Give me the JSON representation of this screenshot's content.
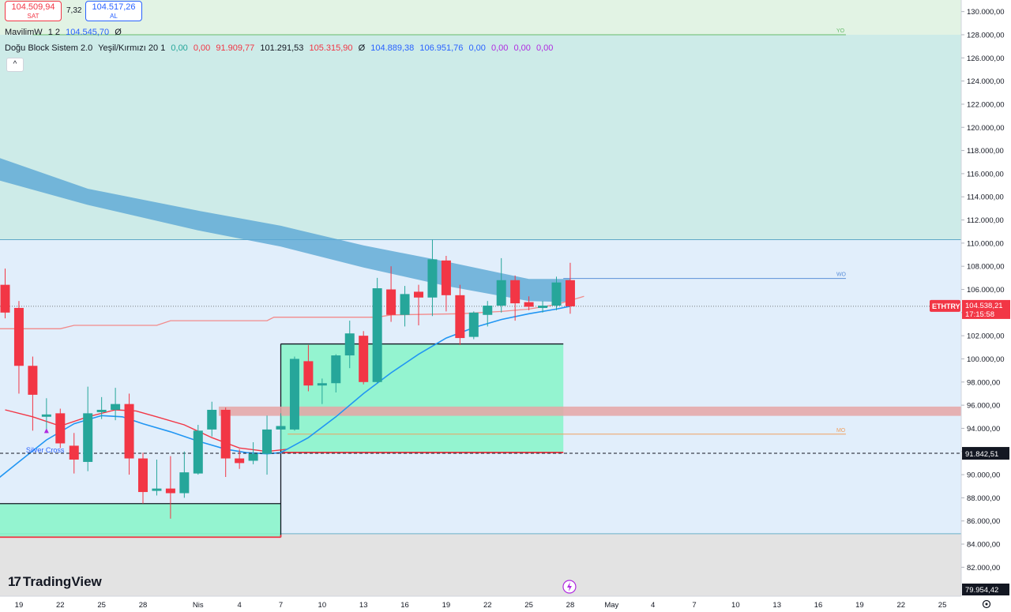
{
  "header": {
    "sell_price": "104.509,94",
    "sell_label": "SAT",
    "spread": "7,32",
    "buy_price": "104.517,26",
    "buy_label": "AL",
    "collapse_icon": "chevron-up-icon",
    "collapse_glyph": "^"
  },
  "legend": {
    "line1": {
      "name": "MavilimW",
      "params": "1 2",
      "value": "104.545,70",
      "symbol": "Ø"
    },
    "line2": {
      "name": "Doğu Block Sistem 2.0",
      "params": "Yeşil/Kırmızı 20 1",
      "values": [
        "0,00",
        "0,00",
        "91.909,77",
        "101.291,53",
        "105.315,90",
        "Ø",
        "104.889,38",
        "106.951,76",
        "0,00",
        "0,00",
        "0,00",
        "0,00"
      ]
    }
  },
  "logo": {
    "text": "TradingView",
    "mark": "17"
  },
  "colors": {
    "up": "#26a69a",
    "down": "#f23645",
    "mavilim": "#2196f3",
    "redline": "#f23645",
    "band": "#5ba8d4",
    "green_box": "#86f5c8",
    "pink_zone": "#e5a5a5"
  },
  "chart_data": {
    "type": "candlestick",
    "symbol": "ETHTRY",
    "last_price": "104.538,21",
    "countdown": "17:15:58",
    "bottom_price_label": "79.954,42",
    "dashed_level_label": "91.842,51",
    "dashed_level": 91842.51,
    "ylim": [
      79500,
      131000
    ],
    "y_ticks": [
      "130.000,00",
      "128.000,00",
      "126.000,00",
      "124.000,00",
      "122.000,00",
      "120.000,00",
      "118.000,00",
      "116.000,00",
      "114.000,00",
      "112.000,00",
      "110.000,00",
      "108.000,00",
      "106.000,00",
      "104.000,00",
      "102.000,00",
      "100.000,00",
      "98.000,00",
      "96.000,00",
      "94.000,00",
      "92.000,00",
      "90.000,00",
      "88.000,00",
      "86.000,00",
      "84.000,00",
      "82.000,00"
    ],
    "y_tick_values": [
      130000,
      128000,
      126000,
      124000,
      122000,
      120000,
      118000,
      116000,
      114000,
      112000,
      110000,
      108000,
      106000,
      104000,
      102000,
      100000,
      98000,
      96000,
      94000,
      92000,
      90000,
      88000,
      86000,
      84000,
      82000
    ],
    "x_labels": [
      {
        "i": 1,
        "label": "19"
      },
      {
        "i": 4,
        "label": "22"
      },
      {
        "i": 7,
        "label": "25"
      },
      {
        "i": 10,
        "label": "28"
      },
      {
        "i": 14,
        "label": "Nis"
      },
      {
        "i": 17,
        "label": "4"
      },
      {
        "i": 20,
        "label": "7"
      },
      {
        "i": 23,
        "label": "10"
      },
      {
        "i": 26,
        "label": "13"
      },
      {
        "i": 29,
        "label": "16"
      },
      {
        "i": 32,
        "label": "19"
      },
      {
        "i": 35,
        "label": "22"
      },
      {
        "i": 38,
        "label": "25"
      },
      {
        "i": 41,
        "label": "28"
      },
      {
        "i": 44,
        "label": "May"
      },
      {
        "i": 47,
        "label": "4"
      },
      {
        "i": 50,
        "label": "7"
      },
      {
        "i": 53,
        "label": "10"
      },
      {
        "i": 56,
        "label": "13"
      },
      {
        "i": 59,
        "label": "16"
      },
      {
        "i": 62,
        "label": "19"
      },
      {
        "i": 65,
        "label": "22"
      },
      {
        "i": 68,
        "label": "25"
      }
    ],
    "candles": [
      {
        "o": 106400,
        "h": 107800,
        "l": 103500,
        "c": 104000
      },
      {
        "o": 104400,
        "h": 105000,
        "l": 97000,
        "c": 99400
      },
      {
        "o": 99400,
        "h": 100200,
        "l": 93800,
        "c": 96900
      },
      {
        "o": 95000,
        "h": 96600,
        "l": 93600,
        "c": 95200
      },
      {
        "o": 95300,
        "h": 95700,
        "l": 92300,
        "c": 92700
      },
      {
        "o": 92500,
        "h": 93600,
        "l": 90100,
        "c": 91300
      },
      {
        "o": 91100,
        "h": 97600,
        "l": 90300,
        "c": 95300
      },
      {
        "o": 95400,
        "h": 96700,
        "l": 94800,
        "c": 95600
      },
      {
        "o": 95600,
        "h": 97500,
        "l": 94700,
        "c": 96100
      },
      {
        "o": 96100,
        "h": 97000,
        "l": 90000,
        "c": 91400
      },
      {
        "o": 91400,
        "h": 91900,
        "l": 87500,
        "c": 88500
      },
      {
        "o": 88600,
        "h": 91300,
        "l": 88200,
        "c": 88800
      },
      {
        "o": 88800,
        "h": 91600,
        "l": 86200,
        "c": 88400
      },
      {
        "o": 88400,
        "h": 92000,
        "l": 88000,
        "c": 90200
      },
      {
        "o": 90100,
        "h": 94300,
        "l": 90000,
        "c": 93800
      },
      {
        "o": 93900,
        "h": 96300,
        "l": 93300,
        "c": 95600
      },
      {
        "o": 95600,
        "h": 95800,
        "l": 89800,
        "c": 91400
      },
      {
        "o": 91400,
        "h": 92200,
        "l": 90500,
        "c": 91000
      },
      {
        "o": 91200,
        "h": 92800,
        "l": 90900,
        "c": 91800
      },
      {
        "o": 91800,
        "h": 95100,
        "l": 90000,
        "c": 93900
      },
      {
        "o": 93900,
        "h": 95300,
        "l": 92200,
        "c": 94200
      },
      {
        "o": 93900,
        "h": 100200,
        "l": 93800,
        "c": 100000
      },
      {
        "o": 99800,
        "h": 101200,
        "l": 97200,
        "c": 97700
      },
      {
        "o": 97700,
        "h": 98300,
        "l": 96100,
        "c": 97900
      },
      {
        "o": 97900,
        "h": 100400,
        "l": 97100,
        "c": 100300
      },
      {
        "o": 100300,
        "h": 103300,
        "l": 99200,
        "c": 102200
      },
      {
        "o": 102000,
        "h": 102400,
        "l": 97800,
        "c": 98000
      },
      {
        "o": 98000,
        "h": 107000,
        "l": 97900,
        "c": 106100
      },
      {
        "o": 106000,
        "h": 108000,
        "l": 103200,
        "c": 103800
      },
      {
        "o": 103800,
        "h": 106300,
        "l": 102800,
        "c": 105600
      },
      {
        "o": 105800,
        "h": 106400,
        "l": 102900,
        "c": 105300
      },
      {
        "o": 105300,
        "h": 110300,
        "l": 103700,
        "c": 108600
      },
      {
        "o": 108500,
        "h": 108900,
        "l": 104100,
        "c": 105500
      },
      {
        "o": 105500,
        "h": 106400,
        "l": 101200,
        "c": 101800
      },
      {
        "o": 101900,
        "h": 104100,
        "l": 101700,
        "c": 104000
      },
      {
        "o": 103800,
        "h": 105000,
        "l": 102800,
        "c": 104600
      },
      {
        "o": 104600,
        "h": 108700,
        "l": 104000,
        "c": 106800
      },
      {
        "o": 106800,
        "h": 107200,
        "l": 103300,
        "c": 104800
      },
      {
        "o": 104900,
        "h": 105400,
        "l": 104200,
        "c": 104500
      },
      {
        "o": 104400,
        "h": 105000,
        "l": 104000,
        "c": 104600
      },
      {
        "o": 104600,
        "h": 107100,
        "l": 104200,
        "c": 106600
      },
      {
        "o": 106800,
        "h": 108300,
        "l": 103900,
        "c": 104540
      }
    ],
    "mavilim": [
      [
        -1,
        89200
      ],
      [
        1,
        91100
      ],
      [
        3,
        93000
      ],
      [
        5,
        94400
      ],
      [
        7,
        95100
      ],
      [
        8.5,
        95000
      ],
      [
        10,
        94400
      ],
      [
        12,
        93700
      ],
      [
        14,
        92900
      ],
      [
        16,
        92200
      ],
      [
        17.5,
        91900
      ],
      [
        19,
        91800
      ],
      [
        20,
        91900
      ],
      [
        22,
        93200
      ],
      [
        24,
        95000
      ],
      [
        26,
        97000
      ],
      [
        28,
        98800
      ],
      [
        30,
        100400
      ],
      [
        32,
        101800
      ],
      [
        34,
        102700
      ],
      [
        36,
        103400
      ],
      [
        38,
        103900
      ],
      [
        40,
        104300
      ],
      [
        41,
        104545
      ]
    ],
    "red_curve": [
      [
        0,
        95600
      ],
      [
        2,
        95000
      ],
      [
        4,
        94200
      ],
      [
        6,
        95000
      ],
      [
        8,
        95600
      ],
      [
        9.5,
        95500
      ],
      [
        11,
        95000
      ],
      [
        13,
        94300
      ],
      [
        15,
        93200
      ],
      [
        17,
        92300
      ],
      [
        19,
        92000
      ],
      [
        20.5,
        92200
      ]
    ],
    "band": {
      "upper": [
        [
          -1,
          117600
        ],
        [
          6,
          114700
        ],
        [
          14,
          112800
        ],
        [
          20,
          111500
        ],
        [
          26,
          109800
        ],
        [
          32,
          108400
        ],
        [
          38,
          106900
        ],
        [
          41,
          106900
        ]
      ],
      "lower": [
        [
          -1,
          115600
        ],
        [
          6,
          113300
        ],
        [
          14,
          111100
        ],
        [
          20,
          109700
        ],
        [
          26,
          107900
        ],
        [
          32,
          106300
        ],
        [
          38,
          105000
        ],
        [
          41,
          104900
        ]
      ]
    },
    "pink_line": [
      [
        -1,
        102600
      ],
      [
        4,
        102600
      ],
      [
        5,
        102900
      ],
      [
        11,
        102900
      ],
      [
        12,
        103300
      ],
      [
        19,
        103300
      ],
      [
        19.5,
        103600
      ],
      [
        27,
        103600
      ],
      [
        28,
        103800
      ],
      [
        33,
        103900
      ],
      [
        36,
        104100
      ],
      [
        38,
        104300
      ],
      [
        40,
        104700
      ],
      [
        42,
        105400
      ]
    ],
    "zones": {
      "top_green": [
        128000,
        131000
      ],
      "teal": [
        110300,
        128000
      ],
      "blue": [
        84900,
        110300
      ],
      "gray": [
        79500,
        84900
      ]
    },
    "boxes": [
      {
        "x0": -1,
        "x1": 20,
        "top": 87500,
        "bottom": 84600,
        "fill": "green"
      },
      {
        "x0": 20,
        "x1": 40.5,
        "top": 101290,
        "bottom": 91910,
        "fill": "green"
      }
    ],
    "pink_zone": {
      "x0": 15.5,
      "x1": 69.5,
      "top": 95880,
      "bottom": 95080
    },
    "levels": [
      {
        "label": "YO",
        "y": 128000,
        "x0": 2,
        "x1": 61
      },
      {
        "label": "WO",
        "y": 106950,
        "x0": 40.5,
        "x1": 61
      },
      {
        "label": "MO",
        "y": 93500,
        "x0": 20.5,
        "x1": 61
      }
    ],
    "annotation": "Silver Cross",
    "annotation_index": 3
  }
}
